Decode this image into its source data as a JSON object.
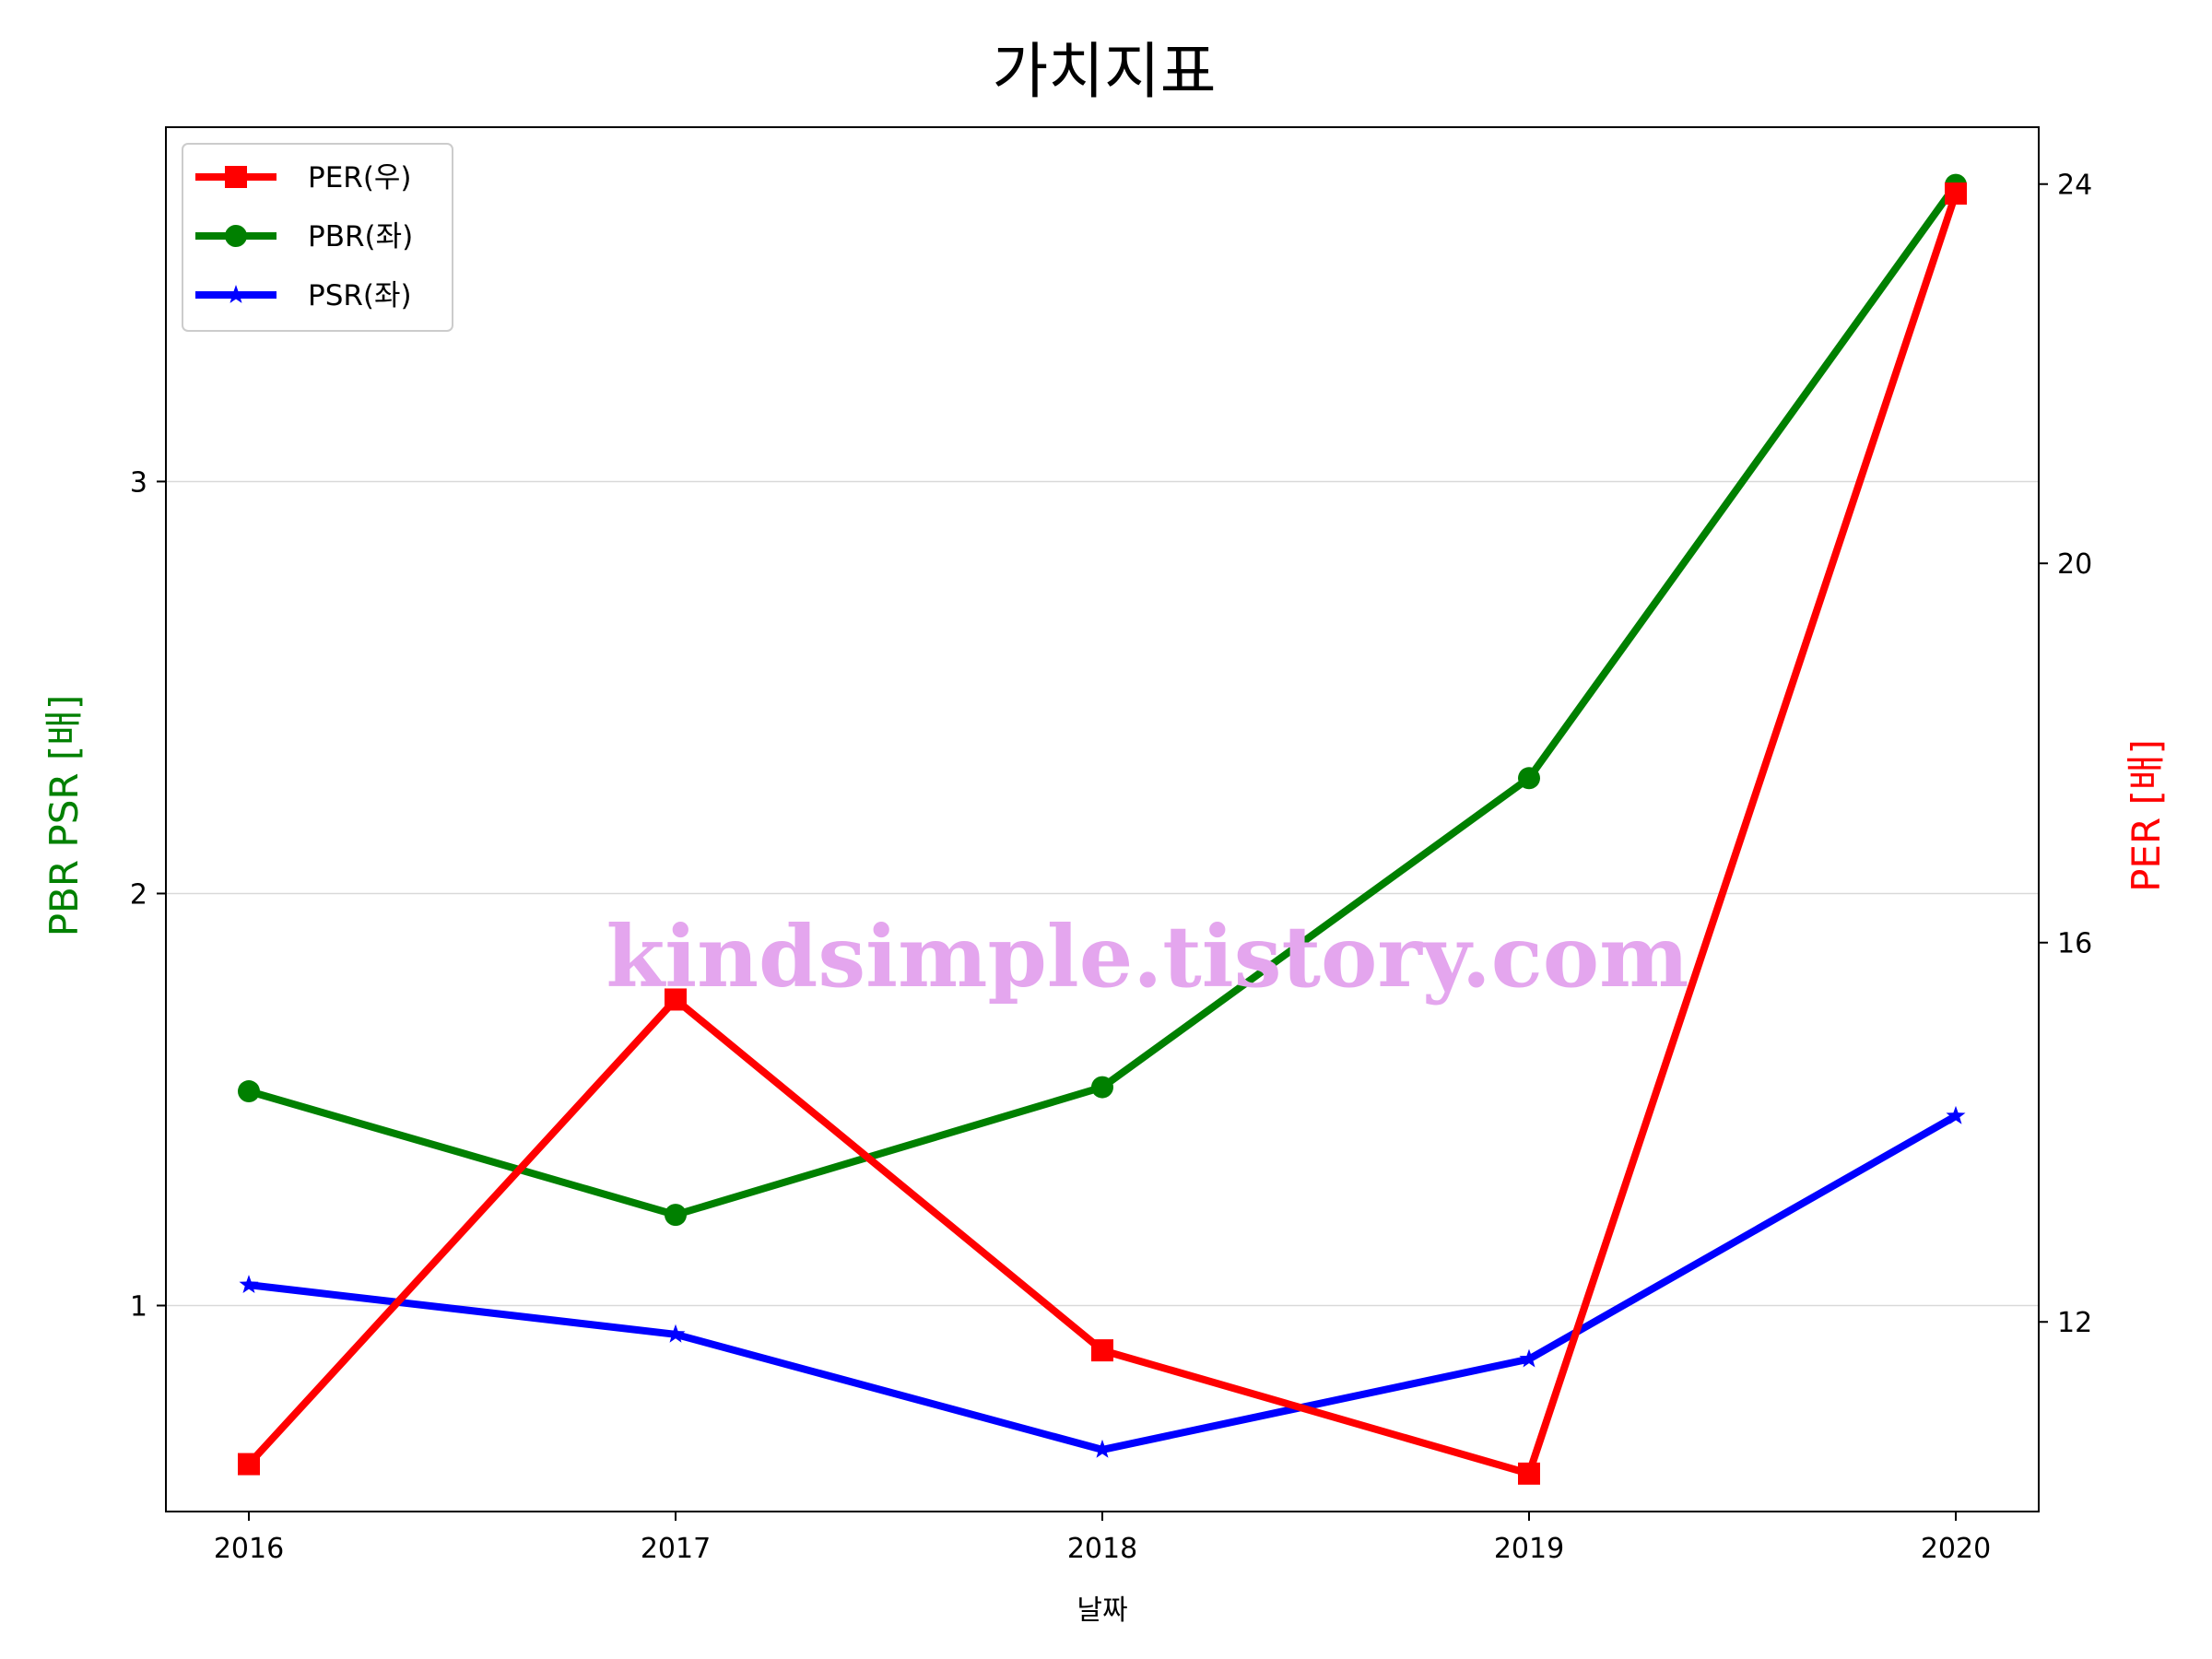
{
  "chart_data": {
    "type": "line",
    "title": "가치지표",
    "xlabel": "날짜",
    "ylabel_left": "PBR PSR [배]",
    "ylabel_right": "PER [배]",
    "categories": [
      "2016",
      "2017",
      "2018",
      "2019",
      "2020"
    ],
    "ylim_left": [
      0.5,
      3.86
    ],
    "ylim_right": [
      10.0,
      24.6
    ],
    "yticks_left": [
      "1",
      "2",
      "3"
    ],
    "yticks_right": [
      "12",
      "16",
      "20",
      "24"
    ],
    "grid": "horizontal (left axis)",
    "legend_position": "top-left",
    "series": [
      {
        "name": "PER(우)",
        "axis": "right",
        "color": "#ff0000",
        "marker": "square",
        "values": [
          10.5,
          15.4,
          11.7,
          10.4,
          23.9
        ]
      },
      {
        "name": "PBR(좌)",
        "axis": "left",
        "color": "#008000",
        "marker": "circle",
        "values": [
          1.52,
          1.22,
          1.53,
          2.28,
          3.72
        ]
      },
      {
        "name": "PSR(좌)",
        "axis": "left",
        "color": "#0000ff",
        "marker": "star",
        "values": [
          1.05,
          0.93,
          0.65,
          0.87,
          1.46
        ]
      }
    ],
    "watermark": "kindsimple.tistory.com"
  }
}
